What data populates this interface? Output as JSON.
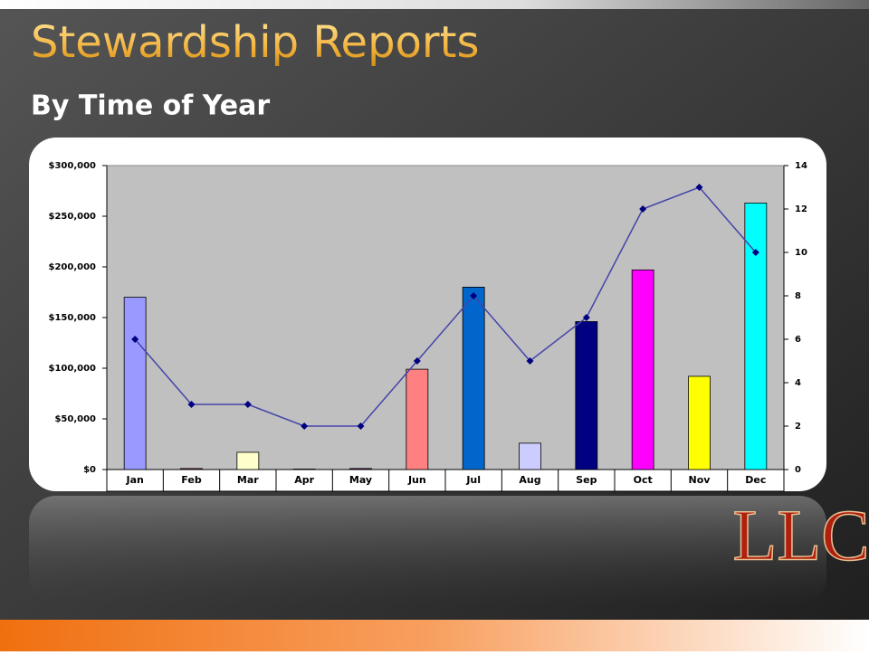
{
  "chart_data": {
    "type": "bar",
    "title": "Stewardship Reports",
    "subtitle": "By Time of Year",
    "categories": [
      "Jan",
      "Feb",
      "Mar",
      "Apr",
      "May",
      "Jun",
      "Jul",
      "Aug",
      "Sep",
      "Oct",
      "Nov",
      "Dec"
    ],
    "series": [
      {
        "values": [
          170000,
          1000,
          17000,
          500,
          1000,
          99000,
          180000,
          26000,
          146000,
          197000,
          92000,
          263000
        ],
        "colors": [
          "#9999ff",
          "#993366",
          "#ffffcc",
          "#ccffff",
          "#660066",
          "#ff8080",
          "#0066cc",
          "#ccccff",
          "#000080",
          "#ff00ff",
          "#ffff00",
          "#00ffff"
        ]
      },
      {
        "type": "line",
        "axis": "y2",
        "color": "#4444aa",
        "marker_color": "#000080",
        "values": [
          6,
          3,
          3,
          2,
          2,
          5,
          8,
          5,
          7,
          12,
          13,
          10
        ]
      }
    ],
    "ylim": [
      0,
      300000
    ],
    "yticks": [
      {
        "value": 0,
        "label": "$0"
      },
      {
        "value": 50000,
        "label": "$50,000"
      },
      {
        "value": 100000,
        "label": "$100,000"
      },
      {
        "value": 150000,
        "label": "$150,000"
      },
      {
        "value": 200000,
        "label": "$200,000"
      },
      {
        "value": 250000,
        "label": "$250,000"
      },
      {
        "value": 300000,
        "label": "$300,000"
      }
    ],
    "y2lim": [
      0,
      14
    ],
    "y2ticks": [
      0,
      2,
      4,
      6,
      8,
      10,
      12,
      14
    ]
  },
  "logo": "LLC"
}
